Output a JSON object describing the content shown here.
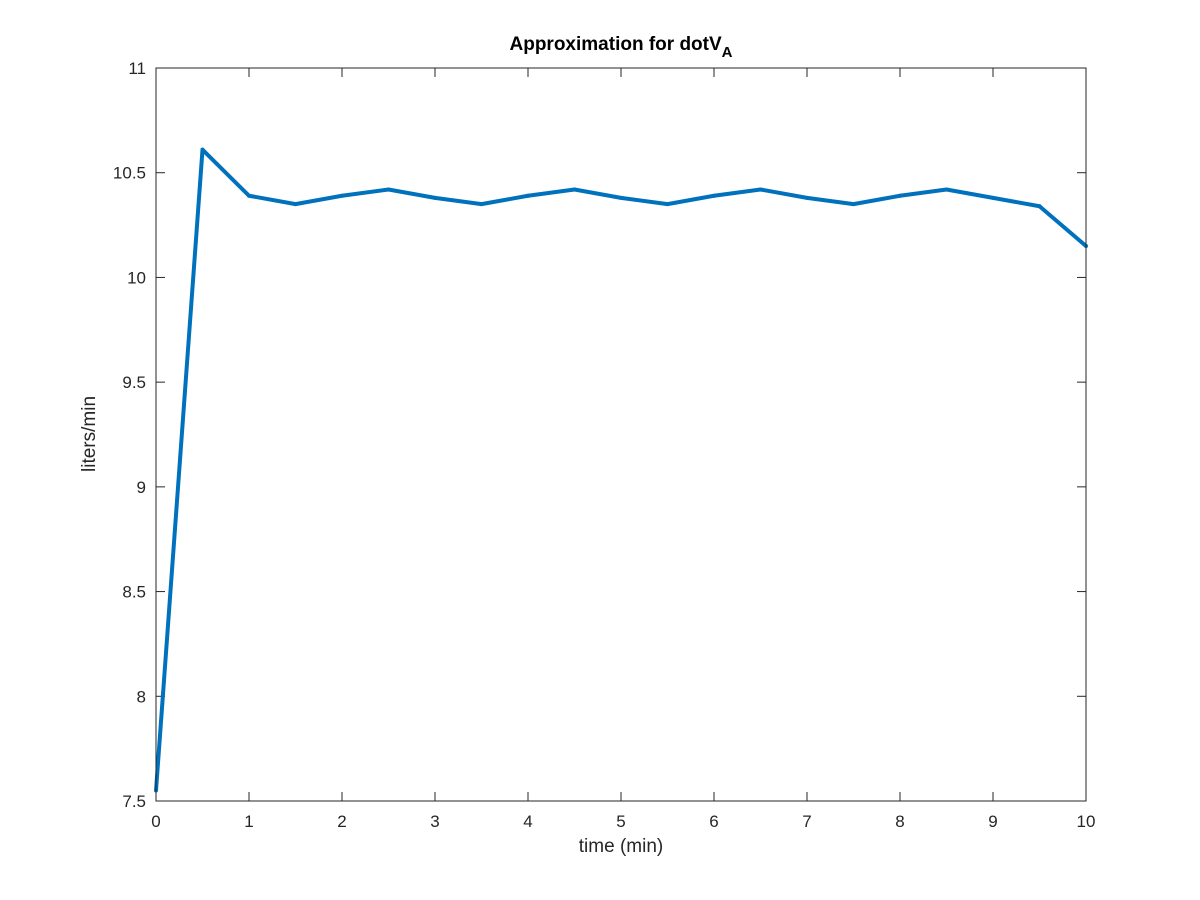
{
  "chart_data": {
    "type": "line",
    "title": "Approximation for dotV",
    "title_subscript": "A",
    "xlabel": "time (min)",
    "ylabel": "liters/min",
    "xlim": [
      0,
      10
    ],
    "ylim": [
      7.5,
      11
    ],
    "xticks": [
      "0",
      "1",
      "2",
      "3",
      "4",
      "5",
      "6",
      "7",
      "8",
      "9",
      "10"
    ],
    "yticks": [
      "7.5",
      "8",
      "8.5",
      "9",
      "9.5",
      "10",
      "10.5",
      "11"
    ],
    "grid": false,
    "series": [
      {
        "color": "#0072BD",
        "x": [
          0,
          0.5,
          1,
          1.5,
          2,
          2.5,
          3,
          3.5,
          4,
          4.5,
          5,
          5.5,
          6,
          6.5,
          7,
          7.5,
          8,
          8.5,
          9,
          9.5,
          10
        ],
        "y": [
          7.55,
          10.61,
          10.39,
          10.35,
          10.39,
          10.42,
          10.38,
          10.35,
          10.39,
          10.42,
          10.38,
          10.35,
          10.39,
          10.42,
          10.38,
          10.35,
          10.39,
          10.42,
          10.38,
          10.34,
          10.15
        ]
      }
    ]
  }
}
